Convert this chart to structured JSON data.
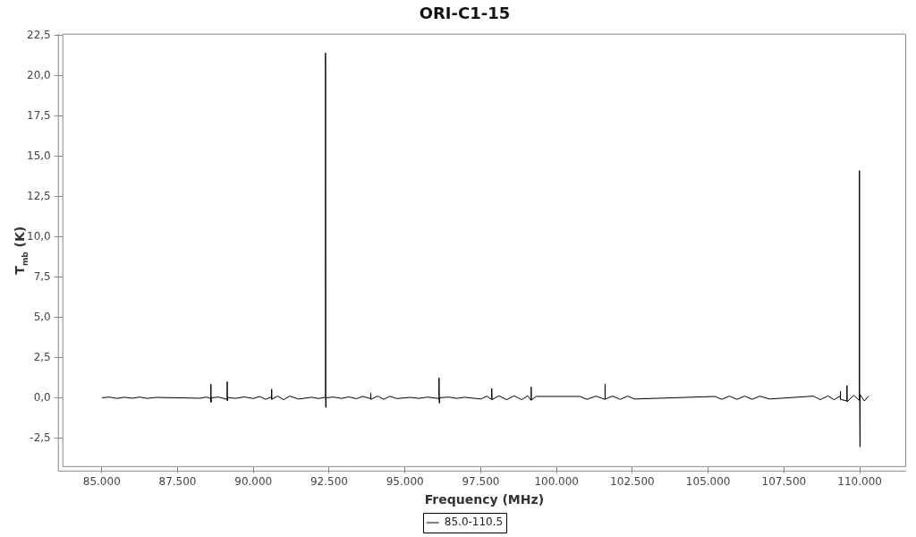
{
  "chart_data": {
    "type": "line",
    "title": "ORI-C1-15",
    "xlabel": "Frequency (MHz)",
    "ylabel": "T$_{mb}$ (K)",
    "legend": "bottom",
    "xlim": [
      83700,
      111530
    ],
    "ylim": [
      -4.3,
      22.6
    ],
    "xticks": [
      {
        "value": 85000,
        "label": "85.000"
      },
      {
        "value": 87500,
        "label": "87.500"
      },
      {
        "value": 90000,
        "label": "90.000"
      },
      {
        "value": 92500,
        "label": "92.500"
      },
      {
        "value": 95000,
        "label": "95.000"
      },
      {
        "value": 97500,
        "label": "97.500"
      },
      {
        "value": 100000,
        "label": "100.000"
      },
      {
        "value": 102500,
        "label": "102.500"
      },
      {
        "value": 105000,
        "label": "105.000"
      },
      {
        "value": 107500,
        "label": "107.500"
      },
      {
        "value": 110000,
        "label": "110.000"
      }
    ],
    "yticks": [
      {
        "value": -2.5,
        "label": "-2,5"
      },
      {
        "value": 0,
        "label": "0,0"
      },
      {
        "value": 2.5,
        "label": "2,5"
      },
      {
        "value": 5,
        "label": "5,0"
      },
      {
        "value": 7.5,
        "label": "7,5"
      },
      {
        "value": 10,
        "label": "10,0"
      },
      {
        "value": 12.5,
        "label": "12,5"
      },
      {
        "value": 15,
        "label": "15,0"
      },
      {
        "value": 17.5,
        "label": "17,5"
      },
      {
        "value": 20,
        "label": "20,0"
      },
      {
        "value": 22.5,
        "label": "22,5"
      }
    ],
    "x": [
      85000,
      85250,
      85500,
      85750,
      86000,
      86250,
      86500,
      86800,
      88240,
      88450,
      88590,
      88597,
      88603,
      88610,
      88850,
      89130,
      89136,
      89142,
      89150,
      89400,
      89700,
      90000,
      90200,
      90400,
      90595,
      90601,
      90607,
      90800,
      91000,
      91200,
      91490,
      91930,
      92150,
      92372,
      92379,
      92386,
      92395,
      92650,
      92900,
      93150,
      93400,
      93600,
      93864,
      93870,
      93876,
      94100,
      94300,
      94500,
      94730,
      95170,
      95450,
      95750,
      96115,
      96123,
      96131,
      96140,
      96450,
      96700,
      96970,
      97500,
      97700,
      97855,
      97862,
      97870,
      98100,
      98350,
      98600,
      98850,
      99050,
      99153,
      99160,
      99167,
      99330,
      100770,
      101000,
      101300,
      101590,
      101597,
      101604,
      101850,
      102100,
      102350,
      102570,
      105220,
      105450,
      105700,
      105950,
      106200,
      106450,
      106700,
      107020,
      108470,
      108700,
      108950,
      109150,
      109355,
      109360,
      109366,
      109572,
      109578,
      109584,
      109800,
      109975,
      109985,
      109993,
      110000,
      110005,
      110012,
      110150,
      110290
    ],
    "series": [
      {
        "name": "85.0-110.5",
        "color": "#000000",
        "values": [
          0,
          0.04,
          -0.04,
          0.03,
          -0.03,
          0.04,
          -0.04,
          0.02,
          -0.03,
          0.04,
          -0.05,
          0.84,
          -0.28,
          0,
          0.04,
          -0.1,
          1.0,
          -0.2,
          0.02,
          -0.04,
          0.05,
          -0.05,
          0.08,
          -0.1,
          0.05,
          0.54,
          -0.1,
          0.1,
          -0.12,
          0.1,
          -0.08,
          0.03,
          -0.05,
          0.02,
          21.4,
          -0.6,
          0,
          0.04,
          -0.04,
          0.05,
          -0.06,
          0.08,
          -0.05,
          0.28,
          -0.1,
          0.1,
          -0.1,
          0.09,
          -0.05,
          0.02,
          -0.04,
          0.04,
          -0.05,
          1.23,
          -0.33,
          0,
          0.04,
          -0.04,
          0.03,
          -0.08,
          0.1,
          -0.1,
          0.58,
          -0.12,
          0.12,
          -0.12,
          0.12,
          -0.12,
          0.12,
          -0.15,
          0.67,
          -0.15,
          0.08,
          0.08,
          -0.1,
          0.1,
          -0.1,
          0.86,
          -0.08,
          0.1,
          -0.1,
          0.1,
          -0.08,
          0.08,
          -0.1,
          0.1,
          -0.1,
          0.1,
          -0.1,
          0.1,
          -0.08,
          0.1,
          -0.12,
          0.12,
          -0.12,
          0.1,
          0.41,
          -0.1,
          -0.2,
          0.75,
          -0.25,
          0.15,
          -0.15,
          14.1,
          0.6,
          -0.3,
          -3.05,
          0.2,
          -0.2,
          0.1
        ]
      }
    ]
  }
}
